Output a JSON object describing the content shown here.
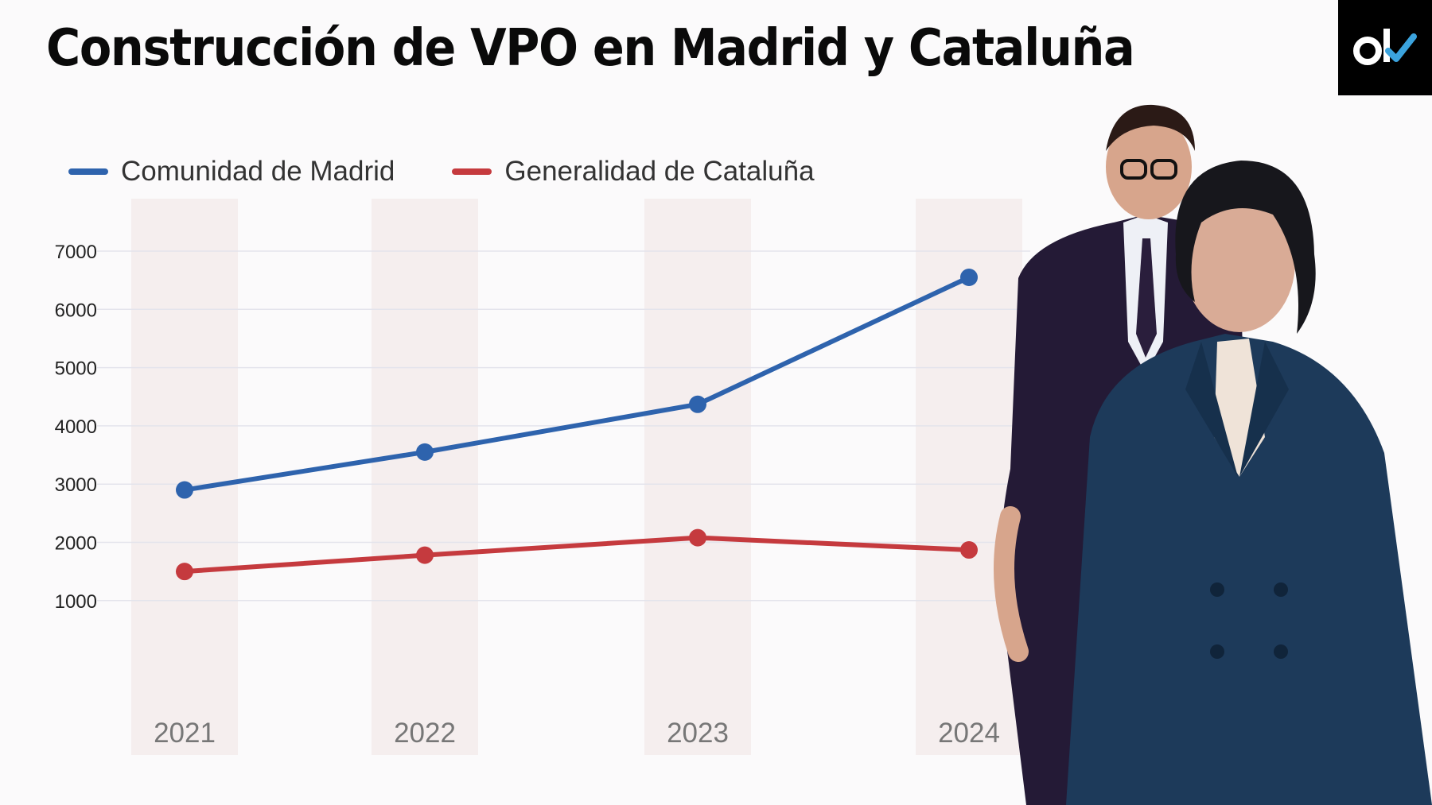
{
  "header": {
    "title": "Construcción de VPO en Madrid y Cataluña",
    "logo_text": "ok"
  },
  "colors": {
    "madrid": "#2e63ad",
    "cataluna": "#c53a3e",
    "column_band": "#f5eeee",
    "grid": "#e4e4ec",
    "logo_bg": "#000000",
    "logo_check": "#3ba3dd"
  },
  "photo": {
    "icon": "politicians-photo"
  },
  "chart_data": {
    "type": "line",
    "title": "Construcción de VPO en Madrid y Cataluña",
    "xlabel": "",
    "ylabel": "",
    "categories": [
      "2021",
      "2022",
      "2023",
      "2024"
    ],
    "series": [
      {
        "name": "Comunidad de Madrid",
        "values": [
          2900,
          3550,
          4370,
          6550
        ]
      },
      {
        "name": "Generalidad de Cataluña",
        "values": [
          1500,
          1780,
          2080,
          1870
        ]
      }
    ],
    "yticks": [
      "7000",
      "6000",
      "5000",
      "4000",
      "3000",
      "2000",
      "1000"
    ],
    "ylim": [
      1000,
      7000
    ],
    "grid": true,
    "legend_position": "top-left"
  }
}
